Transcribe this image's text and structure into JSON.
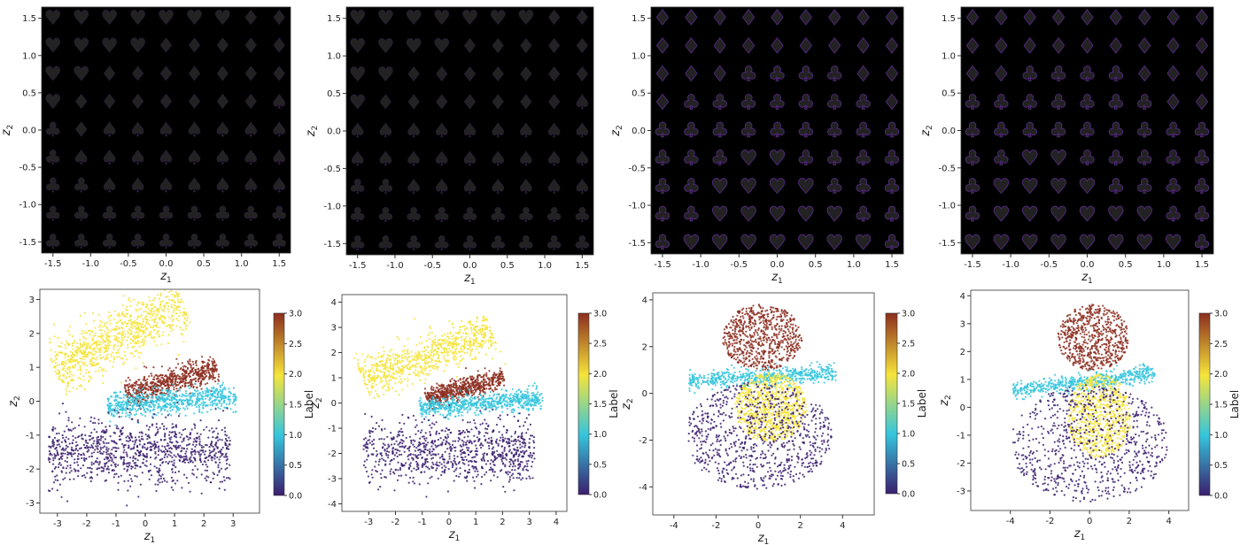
{
  "chart_data": [
    {
      "type": "heatmap",
      "xlabel": "z1",
      "ylabel": "z2",
      "xticks": [
        "-1.5",
        "-1.0",
        "-0.5",
        "0.0",
        "0.5",
        "1.0",
        "1.5"
      ],
      "yticks": [
        "1.5",
        "1.0",
        "0.5",
        "0.0",
        "-0.5",
        "-1.0",
        "-1.5"
      ],
      "xlim": [
        -1.65,
        1.65
      ],
      "ylim": [
        -1.65,
        1.65
      ],
      "grid_values": [
        -1.5,
        -1.125,
        -0.75,
        -0.375,
        0.0,
        0.375,
        0.75,
        1.125,
        1.5
      ],
      "background": "#000000",
      "rows_top_to_bottom": [
        [
          "♥",
          "♥",
          "♥",
          "♥",
          "♥",
          "♥",
          "♥",
          "♦",
          "♦"
        ],
        [
          "♥",
          "♥",
          "♥",
          "♥",
          "♦",
          "♦",
          "♦",
          "♦",
          "♦"
        ],
        [
          "♥",
          "♥",
          "♦",
          "♦",
          "♦",
          "♦",
          "♦",
          "♦",
          "♦"
        ],
        [
          "♥",
          "♦",
          "♦",
          "♦",
          "♦",
          "♦",
          "♦",
          "♦",
          "♠"
        ],
        [
          "♣",
          "♦",
          "♠",
          "♠",
          "♠",
          "♠",
          "♠",
          "♠",
          "♠"
        ],
        [
          "♣",
          "♠",
          "♠",
          "♠",
          "♠",
          "♠",
          "♠",
          "♠",
          "♠"
        ],
        [
          "♣",
          "♣",
          "♠",
          "♠",
          "♠",
          "♠",
          "♠",
          "♠",
          "♠"
        ],
        [
          "♣",
          "♣",
          "♣",
          "♣",
          "♣",
          "♣",
          "♣",
          "♣",
          "♣"
        ],
        [
          "♣",
          "♣",
          "♣",
          "♣",
          "♣",
          "♣",
          "♣",
          "♣",
          "♣"
        ]
      ]
    },
    {
      "type": "heatmap",
      "xlabel": "z1",
      "ylabel": "z2",
      "xticks": [
        "-1.5",
        "-1.0",
        "-0.5",
        "0.0",
        "0.5",
        "1.0",
        "1.5"
      ],
      "yticks": [
        "1.5",
        "1.0",
        "0.5",
        "0.0",
        "-0.5",
        "-1.0",
        "-1.5"
      ],
      "xlim": [
        -1.65,
        1.65
      ],
      "ylim": [
        -1.65,
        1.65
      ],
      "grid_values": [
        -1.5,
        -1.125,
        -0.75,
        -0.375,
        0.0,
        0.375,
        0.75,
        1.125,
        1.5
      ],
      "background": "#000000",
      "rows_top_to_bottom": [
        [
          "♥",
          "♥",
          "♥",
          "♥",
          "♥",
          "♥",
          "♥",
          "♦",
          "♦"
        ],
        [
          "♥",
          "♥",
          "♥",
          "♥",
          "♦",
          "♦",
          "♦",
          "♦",
          "♦"
        ],
        [
          "♥",
          "♥",
          "♦",
          "♦",
          "♦",
          "♦",
          "♦",
          "♦",
          "♦"
        ],
        [
          "♥",
          "♦",
          "♦",
          "♦",
          "♦",
          "♦",
          "♦",
          "♦",
          "♠"
        ],
        [
          "♠",
          "♠",
          "♠",
          "♠",
          "♠",
          "♠",
          "♠",
          "♠",
          "♠"
        ],
        [
          "♠",
          "♠",
          "♠",
          "♠",
          "♠",
          "♠",
          "♠",
          "♠",
          "♠"
        ],
        [
          "♣",
          "♣",
          "♠",
          "♠",
          "♠",
          "♠",
          "♠",
          "♠",
          "♠"
        ],
        [
          "♣",
          "♣",
          "♣",
          "♣",
          "♣",
          "♣",
          "♣",
          "♣",
          "♣"
        ],
        [
          "♣",
          "♣",
          "♣",
          "♣",
          "♣",
          "♣",
          "♣",
          "♣",
          "♣"
        ]
      ]
    },
    {
      "type": "heatmap",
      "xlabel": "z1",
      "ylabel": "z2",
      "xticks": [
        "-1.5",
        "-1.0",
        "-0.5",
        "0.0",
        "0.5",
        "1.0",
        "1.5"
      ],
      "yticks": [
        "1.5",
        "1.0",
        "0.5",
        "0.0",
        "-0.5",
        "-1.0",
        "-1.5"
      ],
      "xlim": [
        -1.65,
        1.65
      ],
      "ylim": [
        -1.65,
        1.65
      ],
      "grid_values": [
        -1.5,
        -1.125,
        -0.75,
        -0.375,
        0.0,
        0.375,
        0.75,
        1.125,
        1.5
      ],
      "background": "#000000",
      "rows_top_to_bottom": [
        [
          "♦",
          "♦",
          "♦",
          "♦",
          "♦",
          "♦",
          "♦",
          "♦",
          "♦"
        ],
        [
          "♦",
          "♦",
          "♦",
          "♦",
          "♦",
          "♦",
          "♦",
          "♦",
          "♦"
        ],
        [
          "♦",
          "♦",
          "♦",
          "♣",
          "♣",
          "♣",
          "♣",
          "♦",
          "♦"
        ],
        [
          "♦",
          "♣",
          "♣",
          "♣",
          "♣",
          "♣",
          "♣",
          "♣",
          "♦"
        ],
        [
          "♣",
          "♣",
          "♣",
          "♣",
          "♣",
          "♣",
          "♣",
          "♣",
          "♣"
        ],
        [
          "♣",
          "♣",
          "♣",
          "♥",
          "♥",
          "♣",
          "♣",
          "♣",
          "♣"
        ],
        [
          "♣",
          "♣",
          "♥",
          "♥",
          "♥",
          "♥",
          "♣",
          "♣",
          "♣"
        ],
        [
          "♣",
          "♣",
          "♥",
          "♥",
          "♥",
          "♥",
          "♥",
          "♣",
          "♣"
        ],
        [
          "♣",
          "♥",
          "♥",
          "♥",
          "♥",
          "♥",
          "♥",
          "♥",
          "♣"
        ]
      ]
    },
    {
      "type": "heatmap",
      "xlabel": "z1",
      "ylabel": "z2",
      "xticks": [
        "-1.5",
        "-1.0",
        "-0.5",
        "0.0",
        "0.5",
        "1.0",
        "1.5"
      ],
      "yticks": [
        "1.5",
        "1.0",
        "0.5",
        "0.0",
        "-0.5",
        "-1.0",
        "-1.5"
      ],
      "xlim": [
        -1.65,
        1.65
      ],
      "ylim": [
        -1.65,
        1.65
      ],
      "grid_values": [
        -1.5,
        -1.125,
        -0.75,
        -0.375,
        0.0,
        0.375,
        0.75,
        1.125,
        1.5
      ],
      "background": "#000000",
      "rows_top_to_bottom": [
        [
          "♦",
          "♦",
          "♦",
          "♦",
          "♦",
          "♦",
          "♦",
          "♦",
          "♦"
        ],
        [
          "♦",
          "♦",
          "♦",
          "♦",
          "♦",
          "♦",
          "♦",
          "♦",
          "♦"
        ],
        [
          "♦",
          "♦",
          "♣",
          "♣",
          "♣",
          "♣",
          "♦",
          "♦",
          "♦"
        ],
        [
          "♣",
          "♣",
          "♣",
          "♣",
          "♣",
          "♣",
          "♣",
          "♦",
          "♦"
        ],
        [
          "♣",
          "♣",
          "♣",
          "♣",
          "♣",
          "♣",
          "♣",
          "♣",
          "♣"
        ],
        [
          "♣",
          "♣",
          "♥",
          "♥",
          "♣",
          "♣",
          "♣",
          "♣",
          "♣"
        ],
        [
          "♣",
          "♥",
          "♥",
          "♥",
          "♥",
          "♣",
          "♣",
          "♣",
          "♣"
        ],
        [
          "♣",
          "♥",
          "♥",
          "♥",
          "♥",
          "♥",
          "♥",
          "♣",
          "♣"
        ],
        [
          "♥",
          "♥",
          "♥",
          "♥",
          "♥",
          "♥",
          "♥",
          "♥",
          "♣"
        ]
      ]
    },
    {
      "type": "scatter",
      "xlabel": "z1",
      "ylabel": "z2",
      "xticks": [
        "-3",
        "-2",
        "-1",
        "0",
        "1",
        "2",
        "3"
      ],
      "yticks": [
        "3",
        "2",
        "1",
        "0",
        "-1",
        "-2",
        "-3"
      ],
      "xlim": [
        -3.6,
        3.9
      ],
      "ylim": [
        -3.3,
        3.3
      ],
      "colorbar": {
        "label": "Label",
        "range": [
          0,
          3
        ],
        "ticks": [
          "3.0",
          "2.5",
          "2.0",
          "1.5",
          "1.0",
          "0.5",
          "0.0"
        ]
      },
      "clusters": [
        {
          "label": 2,
          "color": "#f6e43a",
          "shape": "band",
          "center": [
            -0.9,
            1.9
          ],
          "angle_deg": 24,
          "length": 4.8,
          "width": 1.5,
          "points": 900
        },
        {
          "label": 3,
          "color": "#8c2d1e",
          "shape": "band",
          "center": [
            0.9,
            0.6
          ],
          "angle_deg": 14,
          "length": 3.2,
          "width": 0.8,
          "points": 650
        },
        {
          "label": 1,
          "color": "#35c5dd",
          "shape": "band",
          "center": [
            0.9,
            0.0
          ],
          "angle_deg": 4,
          "length": 4.4,
          "width": 0.75,
          "points": 700
        },
        {
          "label": 0,
          "color": "#3b1e6e",
          "shape": "band",
          "center": [
            -0.2,
            -1.5
          ],
          "angle_deg": 0,
          "length": 6.2,
          "width": 2.0,
          "points": 1000
        }
      ]
    },
    {
      "type": "scatter",
      "xlabel": "z1",
      "ylabel": "z2",
      "xticks": [
        "-3",
        "-2",
        "-1",
        "0",
        "1",
        "2",
        "3",
        "4"
      ],
      "yticks": [
        "4",
        "3",
        "2",
        "1",
        "0",
        "-1",
        "-2",
        "-3",
        "-4"
      ],
      "xlim": [
        -4.0,
        4.4
      ],
      "ylim": [
        -4.3,
        4.3
      ],
      "colorbar": {
        "label": "Label",
        "range": [
          0,
          3
        ],
        "ticks": [
          "3.0",
          "2.5",
          "2.0",
          "1.5",
          "1.0",
          "0.5",
          "0.0"
        ]
      },
      "clusters": [
        {
          "label": 2,
          "color": "#f6e43a",
          "shape": "band",
          "center": [
            -0.8,
            1.9
          ],
          "angle_deg": 22,
          "length": 5.2,
          "width": 1.6,
          "points": 800
        },
        {
          "label": 3,
          "color": "#8c2d1e",
          "shape": "band",
          "center": [
            0.6,
            0.6
          ],
          "angle_deg": 16,
          "length": 3.0,
          "width": 0.8,
          "points": 600
        },
        {
          "label": 1,
          "color": "#35c5dd",
          "shape": "band",
          "center": [
            1.2,
            0.0
          ],
          "angle_deg": 5,
          "length": 4.6,
          "width": 0.8,
          "points": 650
        },
        {
          "label": 0,
          "color": "#3b1e6e",
          "shape": "band",
          "center": [
            0.0,
            -1.9
          ],
          "angle_deg": 0,
          "length": 6.4,
          "width": 2.4,
          "points": 900
        }
      ]
    },
    {
      "type": "scatter",
      "xlabel": "z1",
      "ylabel": "z2",
      "xticks": [
        "-4",
        "-2",
        "0",
        "2",
        "4"
      ],
      "yticks": [
        "4",
        "2",
        "0",
        "-2",
        "-4"
      ],
      "xlim": [
        -5.0,
        5.5
      ],
      "ylim": [
        -5.2,
        4.3
      ],
      "colorbar": {
        "label": "Label",
        "range": [
          0,
          3
        ],
        "ticks": [
          "3.0",
          "2.5",
          "2.0",
          "1.5",
          "1.0",
          "0.5",
          "0.0"
        ]
      },
      "clusters": [
        {
          "label": 3,
          "color": "#8c2d1e",
          "shape": "blob",
          "center": [
            0.2,
            2.4
          ],
          "angle_deg": 0,
          "length": 3.8,
          "width": 2.8,
          "points": 700
        },
        {
          "label": 1,
          "color": "#35c5dd",
          "shape": "band",
          "center": [
            0.2,
            0.7
          ],
          "angle_deg": 3,
          "length": 7.0,
          "width": 0.7,
          "points": 550
        },
        {
          "label": 2,
          "color": "#f6e43a",
          "shape": "blob",
          "center": [
            0.6,
            -0.6
          ],
          "angle_deg": 0,
          "length": 3.4,
          "width": 3.0,
          "points": 800
        },
        {
          "label": 0,
          "color": "#3b1e6e",
          "shape": "blob",
          "center": [
            0.0,
            -1.8
          ],
          "angle_deg": 0,
          "length": 7.0,
          "width": 4.6,
          "points": 800
        }
      ]
    },
    {
      "type": "scatter",
      "xlabel": "z1",
      "ylabel": "z2",
      "xticks": [
        "-4",
        "-2",
        "0",
        "2",
        "4"
      ],
      "yticks": [
        "4",
        "3",
        "2",
        "1",
        "0",
        "-1",
        "-2",
        "-3"
      ],
      "xlim": [
        -6.0,
        5.0
      ],
      "ylim": [
        -3.7,
        4.2
      ],
      "colorbar": {
        "label": "Label",
        "range": [
          0,
          3
        ],
        "ticks": [
          "3.0",
          "2.5",
          "2.0",
          "1.5",
          "1.0",
          "0.5",
          "0.0"
        ]
      },
      "clusters": [
        {
          "label": 3,
          "color": "#8c2d1e",
          "shape": "blob",
          "center": [
            0.2,
            2.5
          ],
          "angle_deg": 0,
          "length": 3.6,
          "width": 2.4,
          "points": 650
        },
        {
          "label": 1,
          "color": "#35c5dd",
          "shape": "band",
          "center": [
            -0.3,
            0.9
          ],
          "angle_deg": 5,
          "length": 7.2,
          "width": 0.6,
          "points": 550
        },
        {
          "label": 2,
          "color": "#f6e43a",
          "shape": "blob",
          "center": [
            0.5,
            -0.3
          ],
          "angle_deg": 0,
          "length": 3.2,
          "width": 3.0,
          "points": 750
        },
        {
          "label": 0,
          "color": "#3b1e6e",
          "shape": "blob",
          "center": [
            0.0,
            -1.3
          ],
          "angle_deg": 0,
          "length": 8.0,
          "width": 4.2,
          "points": 750
        }
      ]
    }
  ]
}
